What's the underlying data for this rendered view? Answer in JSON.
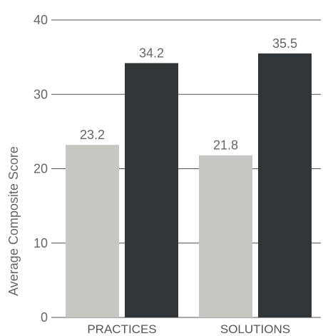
{
  "chart_data": {
    "type": "bar",
    "categories": [
      "PRACTICES",
      "SOLUTIONS"
    ],
    "series": [
      {
        "values": [
          23.2,
          21.8
        ],
        "color": "#c8c6c2"
      },
      {
        "values": [
          34.2,
          35.5
        ],
        "color": "#333638"
      }
    ],
    "data_labels": [
      [
        "23.2",
        "21.8"
      ],
      [
        "34.2",
        "35.5"
      ]
    ],
    "ylabel": "Average Composite Score",
    "ylim": [
      0,
      40
    ],
    "yticks": [
      0,
      10,
      20,
      30,
      40
    ],
    "grid": true,
    "legend": "none"
  }
}
